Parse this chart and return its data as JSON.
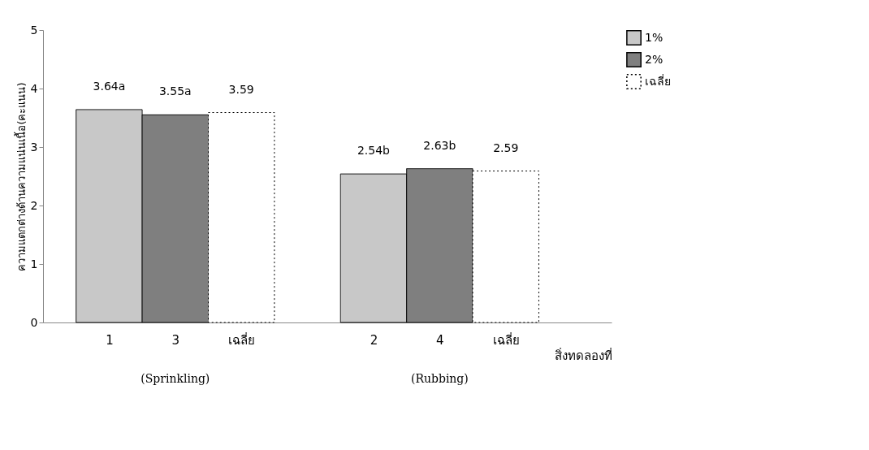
{
  "chart_data": {
    "type": "bar",
    "ylabel": "ความแตกต่างด้านความแน่นเนื้อ(คะแนน)",
    "xlabel": "สิ่งทดลองที่",
    "categories": [
      "1",
      "3",
      "เฉลี่ย",
      "2",
      "4",
      "เฉลี่ย"
    ],
    "series": [
      {
        "name": "1%",
        "color": "#c8c8c8",
        "values": [
          3.64,
          null,
          null,
          2.54,
          null,
          null
        ],
        "value_labels": [
          "3.64a",
          null,
          null,
          "2.54b",
          null,
          null
        ]
      },
      {
        "name": "2%",
        "color": "#7f7f7f",
        "values": [
          null,
          3.55,
          null,
          null,
          2.63,
          null
        ],
        "value_labels": [
          null,
          "3.55a",
          null,
          null,
          "2.63b",
          null
        ]
      },
      {
        "name": "เฉลี่ย",
        "color": "#ffffff",
        "line_style": "dotted",
        "values": [
          null,
          null,
          3.59,
          null,
          null,
          2.59
        ],
        "value_labels": [
          null,
          null,
          "3.59",
          null,
          null,
          "2.59"
        ]
      }
    ],
    "annotations": [
      "(Sprinkling)",
      "(Rubbing)"
    ],
    "ylim": [
      0,
      5
    ],
    "yticks": [
      0,
      1,
      2,
      3,
      4,
      5
    ],
    "grid": false,
    "legend": "right"
  }
}
